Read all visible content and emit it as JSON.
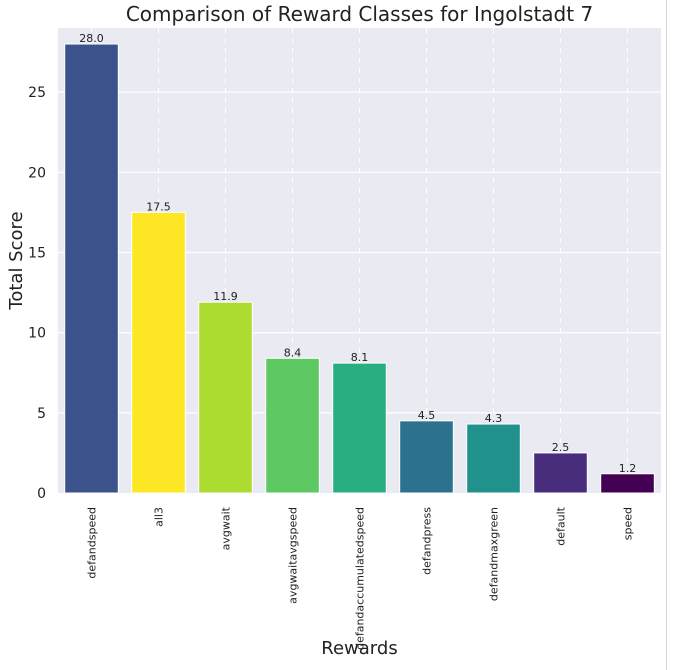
{
  "chart_data": {
    "type": "bar",
    "title": "Comparison of Reward Classes for Ingolstadt 7",
    "xlabel": "Rewards",
    "ylabel": "Total Score",
    "ylim": [
      0,
      29
    ],
    "yticks": [
      0,
      5,
      10,
      15,
      20,
      25
    ],
    "grid": true,
    "categories": [
      "defandspeed",
      "all3",
      "avgwait",
      "avgwaitavgspeed",
      "defandaccumulatedspeed",
      "defandpress",
      "defandmaxgreen",
      "default",
      "speed"
    ],
    "values": [
      28.0,
      17.5,
      11.9,
      8.4,
      8.1,
      4.5,
      4.3,
      2.5,
      1.2
    ],
    "value_labels": [
      "28.0",
      "17.5",
      "11.9",
      "8.4",
      "8.1",
      "4.5",
      "4.3",
      "2.5",
      "1.2"
    ],
    "colors": [
      "#3b528b",
      "#fde725",
      "#addc30",
      "#5ec962",
      "#28ae80",
      "#2c728e",
      "#21918c",
      "#472d7b",
      "#440154"
    ]
  }
}
